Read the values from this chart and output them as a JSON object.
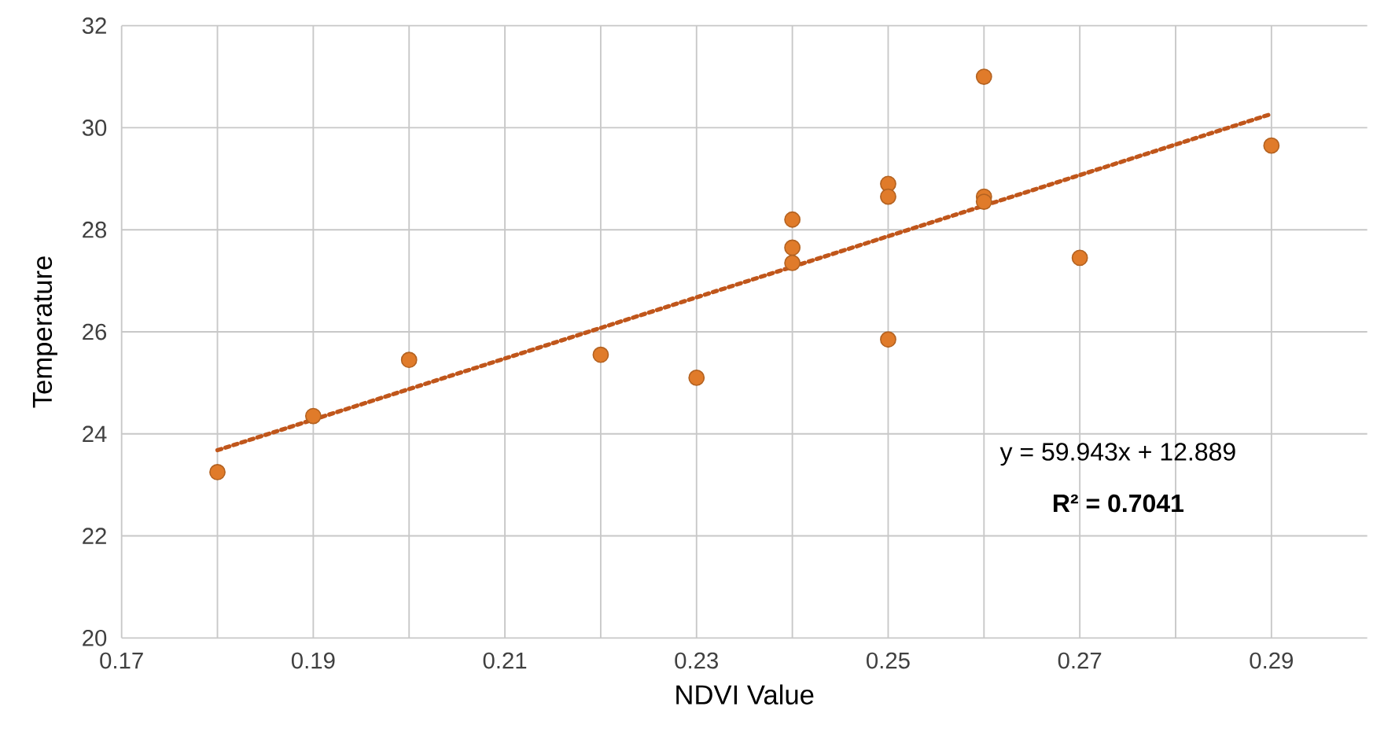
{
  "chart_data": {
    "type": "scatter",
    "xlabel": "NDVI Value",
    "ylabel": "Temperature",
    "xlim": [
      0.17,
      0.3
    ],
    "ylim": [
      20,
      32
    ],
    "xticks": [
      0.17,
      {
        "value": 0.18,
        "label": null
      },
      0.19,
      {
        "value": 0.2,
        "label": null
      },
      0.21,
      {
        "value": 0.22,
        "label": null
      },
      0.23,
      {
        "value": 0.24,
        "label": null
      },
      0.25,
      {
        "value": 0.26,
        "label": null
      },
      0.27,
      {
        "value": 0.28,
        "label": null
      },
      0.29
    ],
    "yticks": [
      20,
      22,
      24,
      26,
      28,
      30,
      32
    ],
    "grid": true,
    "series": [
      {
        "color": "#e07b2a",
        "marker": "circle",
        "x": [
          0.18,
          0.19,
          0.2,
          0.22,
          0.23,
          0.24,
          0.24,
          0.24,
          0.25,
          0.25,
          0.25,
          0.26,
          0.26,
          0.26,
          0.27,
          0.29
        ],
        "values": [
          23.25,
          24.35,
          25.45,
          25.55,
          25.1,
          28.2,
          27.65,
          27.35,
          28.9,
          28.65,
          25.85,
          31.0,
          28.65,
          28.55,
          27.45,
          29.65
        ]
      },
      {
        "type": "line",
        "color": "#c0561b",
        "marker": "none",
        "line_style": "dotted",
        "x": [
          0.18,
          0.29
        ],
        "values": [
          23.68,
          30.27
        ]
      }
    ],
    "annotations": [
      "y = 59.943x + 12.889",
      "**R² = 0.7041**"
    ]
  }
}
